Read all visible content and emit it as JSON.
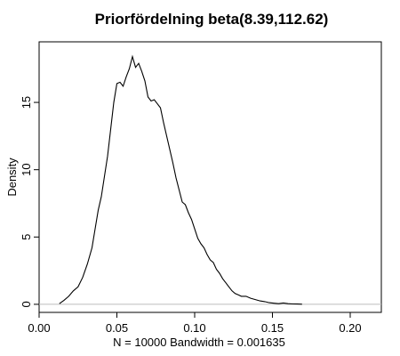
{
  "chart_data": {
    "type": "line",
    "title": "Priorfördelning beta(8.39,112.62)",
    "xlabel": "N = 10000   Bandwidth = 0.001635",
    "ylabel": "Density",
    "xlim": [
      0.0,
      0.22
    ],
    "ylim": [
      -0.6,
      19.5
    ],
    "x_ticks": [
      0.0,
      0.05,
      0.1,
      0.15,
      0.2
    ],
    "x_tick_labels": [
      "0.00",
      "0.05",
      "0.10",
      "0.15",
      "0.20"
    ],
    "y_ticks": [
      0,
      5,
      10,
      15
    ],
    "y_tick_labels": [
      "0",
      "5",
      "10",
      "15"
    ],
    "baseline": 0,
    "grid": false,
    "series": [
      {
        "x": [
          0.013,
          0.016,
          0.019,
          0.022,
          0.025,
          0.028,
          0.031,
          0.034,
          0.036,
          0.038,
          0.04,
          0.042,
          0.044,
          0.046,
          0.048,
          0.05,
          0.052,
          0.054,
          0.056,
          0.058,
          0.06,
          0.062,
          0.064,
          0.066,
          0.068,
          0.07,
          0.072,
          0.074,
          0.076,
          0.078,
          0.08,
          0.082,
          0.084,
          0.086,
          0.088,
          0.09,
          0.092,
          0.094,
          0.096,
          0.098,
          0.1,
          0.102,
          0.104,
          0.106,
          0.108,
          0.11,
          0.112,
          0.114,
          0.116,
          0.118,
          0.12,
          0.122,
          0.124,
          0.126,
          0.128,
          0.13,
          0.133,
          0.136,
          0.139,
          0.142,
          0.145,
          0.148,
          0.151,
          0.154,
          0.157,
          0.16,
          0.163,
          0.166,
          0.169
        ],
        "y": [
          0.05,
          0.3,
          0.6,
          1.0,
          1.3,
          2.0,
          3.0,
          4.2,
          5.6,
          7.0,
          8.0,
          9.5,
          11.0,
          13.0,
          15.0,
          16.4,
          16.5,
          16.2,
          16.9,
          17.5,
          18.4,
          17.6,
          17.9,
          17.3,
          16.6,
          15.4,
          15.1,
          15.2,
          14.9,
          14.6,
          13.5,
          12.5,
          11.5,
          10.5,
          9.4,
          8.5,
          7.6,
          7.4,
          6.8,
          6.3,
          5.6,
          4.9,
          4.5,
          4.2,
          3.7,
          3.3,
          3.1,
          2.6,
          2.3,
          1.9,
          1.6,
          1.3,
          1.0,
          0.8,
          0.7,
          0.6,
          0.6,
          0.45,
          0.35,
          0.25,
          0.2,
          0.12,
          0.08,
          0.05,
          0.1,
          0.05,
          0.03,
          0.02,
          0.01
        ]
      }
    ]
  }
}
